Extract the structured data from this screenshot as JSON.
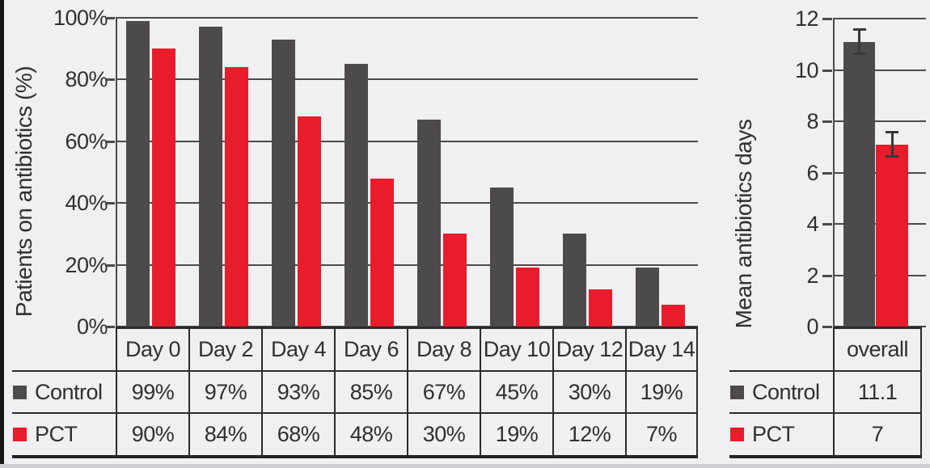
{
  "colors": {
    "background": "#f0eff1",
    "control": "#4d4a4e",
    "pct": "#e81c2a",
    "grid": "#4b494d",
    "table_border": "#2b2a2e",
    "text": "#302f33"
  },
  "chart_data": [
    {
      "type": "bar",
      "title": "",
      "ylabel": "Patients on antibiotics (%)",
      "xlabel": "",
      "categories": [
        "Day 0",
        "Day 2",
        "Day 4",
        "Day 6",
        "Day 8",
        "Day 10",
        "Day 12",
        "Day 14"
      ],
      "ylim": [
        0,
        100
      ],
      "grid": true,
      "legend_position": "table-left-column",
      "yticks": [
        {
          "v": 100,
          "label": "100%"
        },
        {
          "v": 80,
          "label": "80%"
        },
        {
          "v": 60,
          "label": "60%"
        },
        {
          "v": 40,
          "label": "40%"
        },
        {
          "v": 20,
          "label": "20%"
        },
        {
          "v": 0,
          "label": "0%"
        }
      ],
      "series": [
        {
          "name": "Control",
          "color": "#4d4a4e",
          "values": [
            99,
            97,
            93,
            85,
            67,
            45,
            30,
            19
          ],
          "labels": [
            "99%",
            "97%",
            "93%",
            "85%",
            "67%",
            "45%",
            "30%",
            "19%"
          ]
        },
        {
          "name": "PCT",
          "color": "#e81c2a",
          "values": [
            90,
            84,
            68,
            48,
            30,
            19,
            12,
            7
          ],
          "labels": [
            "90%",
            "84%",
            "68%",
            "48%",
            "30%",
            "19%",
            "12%",
            "7%"
          ]
        }
      ]
    },
    {
      "type": "bar",
      "title": "",
      "ylabel": "Mean antibiotics days",
      "xlabel": "",
      "categories": [
        "overall"
      ],
      "ylim": [
        0,
        12
      ],
      "grid": true,
      "legend_position": "table-left-column",
      "yticks": [
        {
          "v": 12,
          "label": "12"
        },
        {
          "v": 10,
          "label": "10"
        },
        {
          "v": 8,
          "label": "8"
        },
        {
          "v": 6,
          "label": "6"
        },
        {
          "v": 4,
          "label": "4"
        },
        {
          "v": 2,
          "label": "2"
        },
        {
          "v": 0,
          "label": "0"
        }
      ],
      "series": [
        {
          "name": "Control",
          "color": "#4d4a4e",
          "values": [
            11.1
          ],
          "labels": [
            "11.1"
          ],
          "errors": [
            0.5
          ]
        },
        {
          "name": "PCT",
          "color": "#e81c2a",
          "values": [
            7.1
          ],
          "labels": [
            "7"
          ],
          "errors": [
            0.5
          ]
        }
      ]
    }
  ]
}
